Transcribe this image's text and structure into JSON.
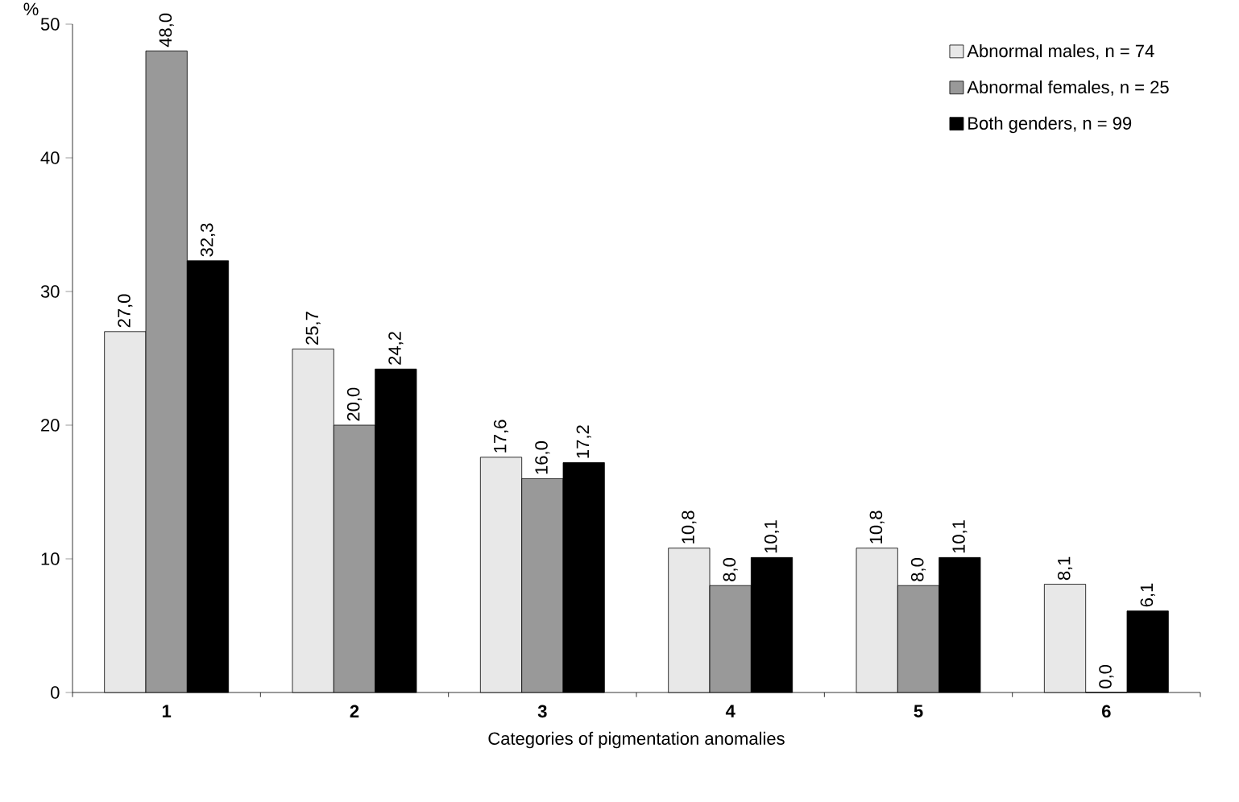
{
  "chart_data": {
    "type": "bar",
    "ylabel": "%",
    "xlabel": "Categories of pigmentation anomalies",
    "categories": [
      "1",
      "2",
      "3",
      "4",
      "5",
      "6"
    ],
    "series": [
      {
        "name": "Abnormal males, n = 74",
        "color": "#e8e8e8",
        "values": [
          27.0,
          25.7,
          17.6,
          10.8,
          10.8,
          8.1
        ],
        "value_labels": [
          "27,0",
          "25,7",
          "17,6",
          "10,8",
          "10,8",
          "8,1"
        ]
      },
      {
        "name": "Abnormal females, n = 25",
        "color": "#999999",
        "values": [
          48.0,
          20.0,
          16.0,
          8.0,
          8.0,
          0.0
        ],
        "value_labels": [
          "48,0",
          "20,0",
          "16,0",
          "8,0",
          "8,0",
          "0,0"
        ]
      },
      {
        "name": "Both genders, n = 99",
        "color": "#000000",
        "values": [
          32.3,
          24.2,
          17.2,
          10.1,
          10.1,
          6.1
        ],
        "value_labels": [
          "32,3",
          "24,2",
          "17,2",
          "10,1",
          "10,1",
          "6,1"
        ]
      }
    ],
    "ylim": [
      0,
      50
    ],
    "yticks": [
      0,
      10,
      20,
      30,
      40,
      50
    ],
    "legend": "top right",
    "grid": false
  }
}
